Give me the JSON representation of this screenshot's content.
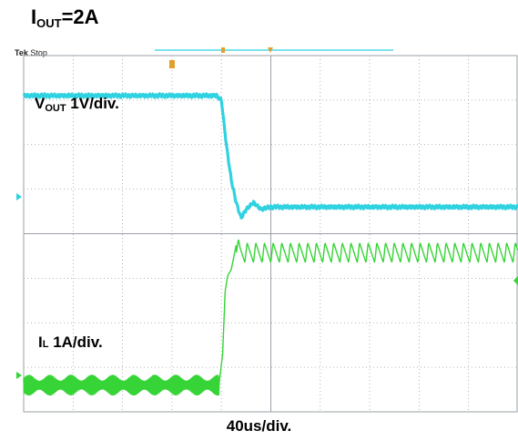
{
  "title": {
    "main": "I",
    "sub": "OUT",
    "suffix": "=2A"
  },
  "scope_status": {
    "brand": "Tek",
    "state": "Stop"
  },
  "channel_labels": {
    "vout": {
      "main": "V",
      "sub": "OUT",
      "rest": " 1V/div."
    },
    "il": {
      "main": "I",
      "sub": "L",
      "rest": " 1A/div."
    }
  },
  "timebase": "40us/div.",
  "colors": {
    "ch1": "#2fd2e0",
    "ch2": "#37d437",
    "grid": "#9aa0a6",
    "trigger": "#e0a030",
    "background": "#ffffff"
  },
  "chart_data": {
    "type": "line",
    "title": "I OUT=2A",
    "xlabel": "40us/div.",
    "x_divisions": 10,
    "y_divisions": 8,
    "grid": true,
    "x_unit": "us",
    "step_time_us": 160,
    "series": [
      {
        "name": "V OUT 1V/div.",
        "color": "#2fd2e0",
        "x": [
          0,
          156,
          160,
          164,
          168,
          172,
          176,
          180,
          186,
          192,
          200,
          400
        ],
        "y": [
          7.1,
          7.1,
          7.0,
          6.0,
          5.2,
          4.7,
          4.35,
          4.55,
          4.7,
          4.55,
          4.6,
          4.6
        ]
      },
      {
        "name": "I L 1A/div.",
        "color": "#37d437",
        "x": [
          0,
          158,
          161,
          163,
          165,
          168,
          172,
          175,
          400
        ],
        "y": [
          0.6,
          0.6,
          1.3,
          2.7,
          3.05,
          3.2,
          3.75,
          3.55,
          3.55
        ]
      }
    ]
  }
}
